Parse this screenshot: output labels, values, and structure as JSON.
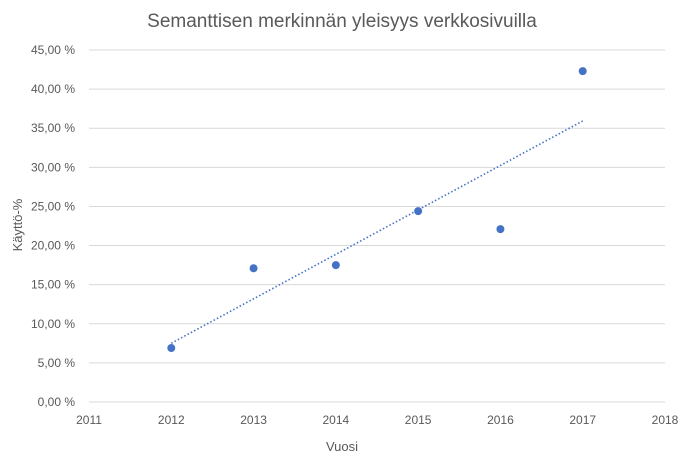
{
  "chart_data": {
    "type": "scatter",
    "title": "Semanttisen merkinnän yleisyys verkkosivuilla",
    "xlabel": "Vuosi",
    "ylabel": "Käyttö-%",
    "xlim": [
      2011,
      2018
    ],
    "ylim": [
      0,
      45
    ],
    "x_ticks": [
      "2011",
      "2012",
      "2013",
      "2014",
      "2015",
      "2016",
      "2017",
      "2018"
    ],
    "y_ticks": [
      "0,00 %",
      "5,00 %",
      "10,00 %",
      "15,00 %",
      "20,00 %",
      "25,00 %",
      "30,00 %",
      "35,00 %",
      "40,00 %",
      "45,00 %"
    ],
    "grid": true,
    "trendline": "linear",
    "series": [
      {
        "x": [
          2012,
          2013,
          2014,
          2015,
          2016,
          2017
        ],
        "y": [
          6.9,
          17.1,
          17.5,
          24.4,
          22.1,
          42.3
        ]
      }
    ],
    "color": "#4472c4"
  }
}
